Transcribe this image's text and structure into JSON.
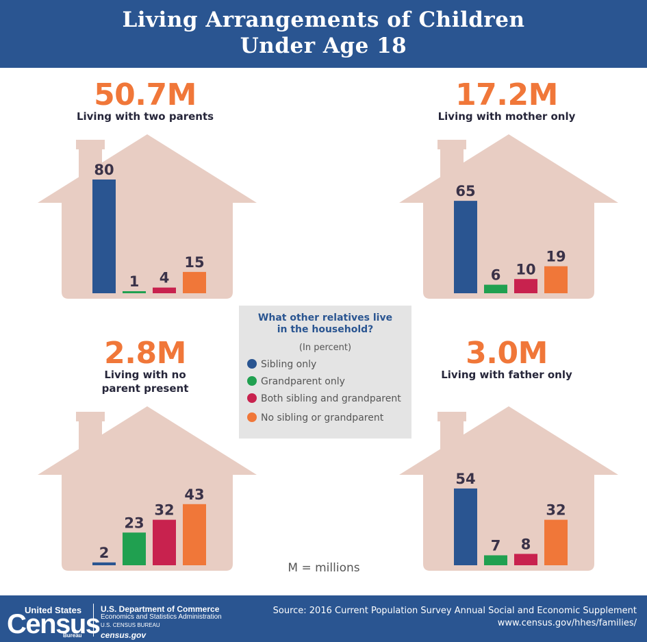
{
  "header": {
    "title_line1": "Living Arrangements of Children",
    "title_line2": "Under Age 18"
  },
  "legend": {
    "title_line1": "What other relatives live",
    "title_line2": "in the household?",
    "unit": "(In percent)",
    "items": [
      {
        "label": "Sibling only",
        "color": "#2a5591"
      },
      {
        "label": "Grandparent only",
        "color": "#20a050"
      },
      {
        "label": "Both sibling and grandparent",
        "color": "#c8224e"
      },
      {
        "label": "No sibling or grandparent",
        "color": "#f07739"
      }
    ]
  },
  "note": "M = millions",
  "colors": {
    "house": "#e8cdc3",
    "accent": "#f07739",
    "brand": "#2a5591"
  },
  "chart_data": [
    {
      "type": "bar",
      "title": "50.7M",
      "subtitle": "Living with two parents",
      "categories": [
        "Sibling only",
        "Grandparent only",
        "Both sibling and grandparent",
        "No sibling or grandparent"
      ],
      "values": [
        80,
        1,
        4,
        15
      ],
      "ylim": [
        0,
        80
      ]
    },
    {
      "type": "bar",
      "title": "17.2M",
      "subtitle": "Living with mother only",
      "categories": [
        "Sibling only",
        "Grandparent only",
        "Both sibling and grandparent",
        "No sibling or grandparent"
      ],
      "values": [
        65,
        6,
        10,
        19
      ],
      "ylim": [
        0,
        80
      ]
    },
    {
      "type": "bar",
      "title": "2.8M",
      "subtitle_line1": "Living with no",
      "subtitle_line2": "parent present",
      "categories": [
        "Sibling only",
        "Grandparent only",
        "Both sibling and grandparent",
        "No sibling or grandparent"
      ],
      "values": [
        2,
        23,
        32,
        43
      ],
      "ylim": [
        0,
        80
      ]
    },
    {
      "type": "bar",
      "title": "3.0M",
      "subtitle": "Living with father only",
      "categories": [
        "Sibling only",
        "Grandparent only",
        "Both sibling and grandparent",
        "No sibling or grandparent"
      ],
      "values": [
        54,
        7,
        8,
        32
      ],
      "ylim": [
        0,
        80
      ]
    }
  ],
  "footer": {
    "logo_top": "United States",
    "logo_main": "Census",
    "logo_bureau": "Bureau",
    "dept_line1": "U.S. Department of Commerce",
    "dept_line2": "Economics and Statistics Administration",
    "dept_line3": "U.S. CENSUS BUREAU",
    "dept_line4": "census.gov",
    "source_line1": "Source: 2016 Current Population Survey Annual Social and Economic Supplement",
    "source_line2": "www.census.gov/hhes/families/"
  }
}
